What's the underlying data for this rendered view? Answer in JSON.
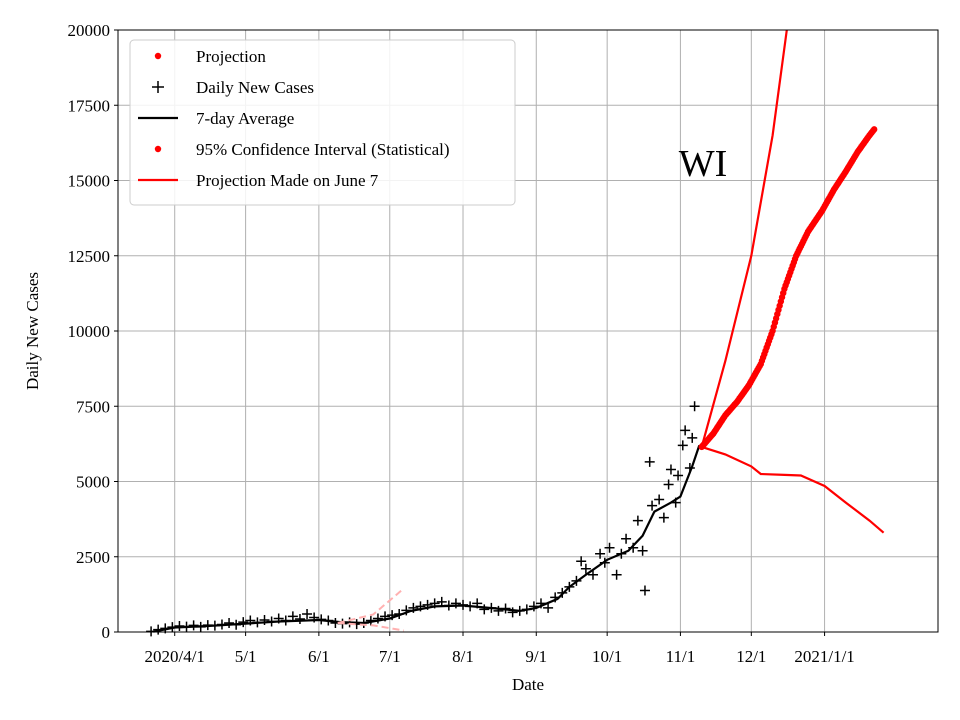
{
  "chart_data": {
    "type": "line",
    "annotation": "WI",
    "xlabel": "Date",
    "ylabel": "Daily New Cases",
    "x_ticks": [
      {
        "date": "2020-04-01",
        "label": "2020/4/1"
      },
      {
        "date": "2020-05-01",
        "label": "5/1"
      },
      {
        "date": "2020-06-01",
        "label": "6/1"
      },
      {
        "date": "2020-07-01",
        "label": "7/1"
      },
      {
        "date": "2020-08-01",
        "label": "8/1"
      },
      {
        "date": "2020-09-01",
        "label": "9/1"
      },
      {
        "date": "2020-10-01",
        "label": "10/1"
      },
      {
        "date": "2020-11-01",
        "label": "11/1"
      },
      {
        "date": "2020-12-01",
        "label": "12/1"
      },
      {
        "date": "2021-01-01",
        "label": "2021/1/1"
      }
    ],
    "xlim": [
      "2020-03-08",
      "2021-02-18"
    ],
    "ylim": [
      0,
      20000
    ],
    "y_ticks": [
      0,
      2500,
      5000,
      7500,
      10000,
      12500,
      15000,
      17500,
      20000
    ],
    "grid": true,
    "legend_position": "top-left",
    "legend": [
      {
        "label": "Projection",
        "marker": "dot",
        "color": "#ff0000"
      },
      {
        "label": "Daily New Cases",
        "marker": "plus",
        "color": "#000000"
      },
      {
        "label": "7-day Average",
        "marker": "line",
        "color": "#000000"
      },
      {
        "label": "95% Confidence Interval (Statistical)",
        "marker": "dot",
        "color": "#ff0000"
      },
      {
        "label": "Projection Made on June 7",
        "marker": "line",
        "color": "#ff0000"
      }
    ],
    "series": [
      {
        "name": "7-day Average",
        "style": "line",
        "color": "#000000",
        "points": [
          [
            "2020-03-23",
            10
          ],
          [
            "2020-04-01",
            150
          ],
          [
            "2020-04-15",
            200
          ],
          [
            "2020-05-01",
            280
          ],
          [
            "2020-05-15",
            350
          ],
          [
            "2020-06-01",
            400
          ],
          [
            "2020-06-10",
            330
          ],
          [
            "2020-06-20",
            300
          ],
          [
            "2020-07-01",
            450
          ],
          [
            "2020-07-10",
            700
          ],
          [
            "2020-07-20",
            850
          ],
          [
            "2020-08-01",
            880
          ],
          [
            "2020-08-15",
            780
          ],
          [
            "2020-08-25",
            700
          ],
          [
            "2020-09-01",
            800
          ],
          [
            "2020-09-10",
            1100
          ],
          [
            "2020-09-15",
            1500
          ],
          [
            "2020-09-22",
            1900
          ],
          [
            "2020-10-01",
            2400
          ],
          [
            "2020-10-10",
            2700
          ],
          [
            "2020-10-16",
            3200
          ],
          [
            "2020-10-21",
            4000
          ],
          [
            "2020-10-28",
            4300
          ],
          [
            "2020-11-01",
            4500
          ],
          [
            "2020-11-06",
            5500
          ],
          [
            "2020-11-09",
            6200
          ]
        ]
      },
      {
        "name": "Daily New Cases",
        "style": "plus",
        "color": "#000000",
        "points": [
          [
            "2020-03-22",
            20
          ],
          [
            "2020-03-25",
            80
          ],
          [
            "2020-03-28",
            120
          ],
          [
            "2020-03-31",
            160
          ],
          [
            "2020-04-03",
            200
          ],
          [
            "2020-04-06",
            180
          ],
          [
            "2020-04-09",
            220
          ],
          [
            "2020-04-12",
            170
          ],
          [
            "2020-04-15",
            230
          ],
          [
            "2020-04-18",
            210
          ],
          [
            "2020-04-21",
            250
          ],
          [
            "2020-04-24",
            300
          ],
          [
            "2020-04-27",
            240
          ],
          [
            "2020-04-30",
            330
          ],
          [
            "2020-05-03",
            380
          ],
          [
            "2020-05-06",
            320
          ],
          [
            "2020-05-09",
            400
          ],
          [
            "2020-05-12",
            350
          ],
          [
            "2020-05-15",
            450
          ],
          [
            "2020-05-18",
            380
          ],
          [
            "2020-05-21",
            520
          ],
          [
            "2020-05-24",
            430
          ],
          [
            "2020-05-27",
            600
          ],
          [
            "2020-05-30",
            480
          ],
          [
            "2020-06-02",
            420
          ],
          [
            "2020-06-05",
            380
          ],
          [
            "2020-06-08",
            300
          ],
          [
            "2020-06-11",
            280
          ],
          [
            "2020-06-14",
            320
          ],
          [
            "2020-06-17",
            260
          ],
          [
            "2020-06-20",
            300
          ],
          [
            "2020-06-23",
            380
          ],
          [
            "2020-06-26",
            450
          ],
          [
            "2020-06-29",
            520
          ],
          [
            "2020-07-02",
            560
          ],
          [
            "2020-07-05",
            600
          ],
          [
            "2020-07-08",
            720
          ],
          [
            "2020-07-11",
            800
          ],
          [
            "2020-07-14",
            850
          ],
          [
            "2020-07-17",
            900
          ],
          [
            "2020-07-20",
            950
          ],
          [
            "2020-07-23",
            1000
          ],
          [
            "2020-07-26",
            880
          ],
          [
            "2020-07-29",
            950
          ],
          [
            "2020-08-01",
            900
          ],
          [
            "2020-08-04",
            850
          ],
          [
            "2020-08-07",
            950
          ],
          [
            "2020-08-10",
            750
          ],
          [
            "2020-08-13",
            800
          ],
          [
            "2020-08-16",
            700
          ],
          [
            "2020-08-19",
            780
          ],
          [
            "2020-08-22",
            650
          ],
          [
            "2020-08-25",
            700
          ],
          [
            "2020-08-28",
            750
          ],
          [
            "2020-08-31",
            850
          ],
          [
            "2020-09-03",
            950
          ],
          [
            "2020-09-06",
            800
          ],
          [
            "2020-09-09",
            1150
          ],
          [
            "2020-09-12",
            1300
          ],
          [
            "2020-09-15",
            1500
          ],
          [
            "2020-09-18",
            1700
          ],
          [
            "2020-09-20",
            2350
          ],
          [
            "2020-09-22",
            2100
          ],
          [
            "2020-09-25",
            1900
          ],
          [
            "2020-09-28",
            2600
          ],
          [
            "2020-09-30",
            2300
          ],
          [
            "2020-10-02",
            2800
          ],
          [
            "2020-10-05",
            1900
          ],
          [
            "2020-10-07",
            2600
          ],
          [
            "2020-10-09",
            3100
          ],
          [
            "2020-10-12",
            2800
          ],
          [
            "2020-10-14",
            3700
          ],
          [
            "2020-10-16",
            2700
          ],
          [
            "2020-10-17",
            1380
          ],
          [
            "2020-10-19",
            5650
          ],
          [
            "2020-10-20",
            4200
          ],
          [
            "2020-10-23",
            4400
          ],
          [
            "2020-10-25",
            3800
          ],
          [
            "2020-10-27",
            4900
          ],
          [
            "2020-10-28",
            5400
          ],
          [
            "2020-10-30",
            4300
          ],
          [
            "2020-10-31",
            5200
          ],
          [
            "2020-11-02",
            6200
          ],
          [
            "2020-11-03",
            6700
          ],
          [
            "2020-11-05",
            5450
          ],
          [
            "2020-11-06",
            6450
          ],
          [
            "2020-11-07",
            7500
          ]
        ]
      },
      {
        "name": "Projection",
        "style": "dot",
        "color": "#ff0000",
        "points": [
          [
            "2020-11-10",
            6150
          ],
          [
            "2020-11-15",
            6600
          ],
          [
            "2020-11-20",
            7200
          ],
          [
            "2020-11-25",
            7650
          ],
          [
            "2020-11-30",
            8200
          ],
          [
            "2020-12-05",
            8900
          ],
          [
            "2020-12-10",
            10000
          ],
          [
            "2020-12-15",
            11400
          ],
          [
            "2020-12-20",
            12500
          ],
          [
            "2020-12-25",
            13300
          ],
          [
            "2020-12-31",
            14000
          ],
          [
            "2021-01-05",
            14700
          ],
          [
            "2021-01-10",
            15300
          ],
          [
            "2021-01-15",
            15950
          ],
          [
            "2021-01-20",
            16500
          ],
          [
            "2021-01-22",
            16700
          ]
        ]
      },
      {
        "name": "Projection Made on June 7",
        "style": "line",
        "color": "#ff0000",
        "points": [
          [
            "2020-11-10",
            6150
          ],
          [
            "2020-11-20",
            9000
          ],
          [
            "2020-12-01",
            12500
          ],
          [
            "2020-12-10",
            16500
          ],
          [
            "2020-12-16",
            20000
          ]
        ]
      },
      {
        "name": "Projection Made on June 7",
        "style": "line",
        "color": "#ff0000",
        "points": [
          [
            "2020-11-10",
            6150
          ],
          [
            "2020-11-20",
            5900
          ],
          [
            "2020-12-01",
            5500
          ],
          [
            "2020-12-05",
            5250
          ],
          [
            "2020-12-15",
            5220
          ],
          [
            "2020-12-22",
            5200
          ],
          [
            "2021-01-01",
            4850
          ],
          [
            "2021-01-10",
            4300
          ],
          [
            "2021-01-20",
            3700
          ],
          [
            "2021-01-26",
            3300
          ]
        ]
      },
      {
        "style": "dashed",
        "color": "#ffb0b0",
        "points": [
          [
            "2020-06-09",
            300
          ],
          [
            "2020-06-24",
            580
          ],
          [
            "2020-07-07",
            1450
          ]
        ]
      },
      {
        "style": "dashed",
        "color": "#ffb0b0",
        "points": [
          [
            "2020-06-09",
            300
          ],
          [
            "2020-06-24",
            220
          ],
          [
            "2020-07-07",
            50
          ]
        ]
      }
    ]
  }
}
